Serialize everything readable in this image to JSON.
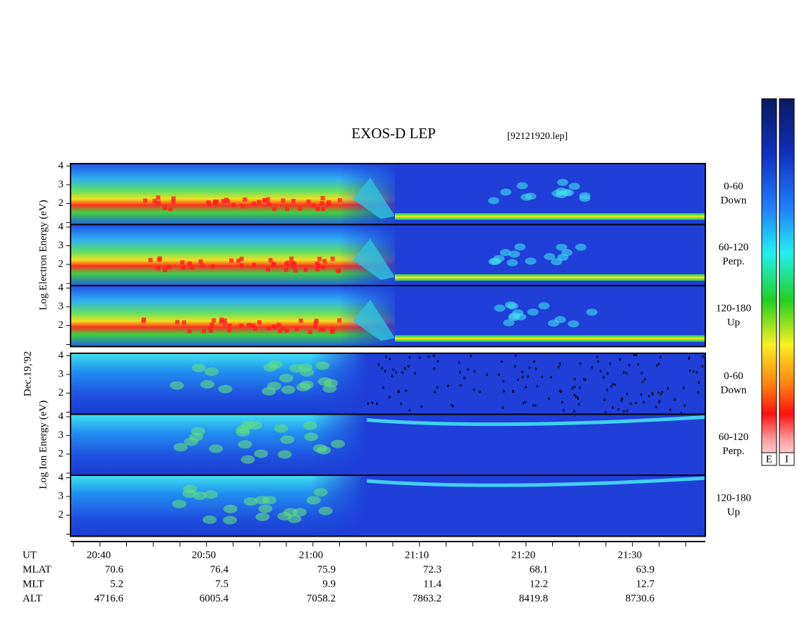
{
  "header": {
    "title": "EXOS-D LEP",
    "file": "[92121920.lep]"
  },
  "date": "Dec.19,'92",
  "groups": [
    {
      "label": "Log Electron Energy (eV)",
      "kind": "electron",
      "panels": [
        {
          "ticks": [
            "2",
            "3",
            "4"
          ],
          "right": [
            "0-60",
            "Down"
          ]
        },
        {
          "ticks": [
            "2",
            "3",
            "4"
          ],
          "right": [
            "60-120",
            "Perp."
          ]
        },
        {
          "ticks": [
            "2",
            "3",
            "4"
          ],
          "right": [
            "120-180",
            "Up"
          ]
        }
      ]
    },
    {
      "label": "Log Ion Energy (eV)",
      "kind": "ion",
      "panels": [
        {
          "ticks": [
            "2",
            "3",
            "4"
          ],
          "right": [
            "0-60",
            "Down"
          ]
        },
        {
          "ticks": [
            "2",
            "3",
            "4"
          ],
          "right": [
            "60-120",
            "Perp."
          ]
        },
        {
          "ticks": [
            "2",
            "3",
            "4"
          ],
          "right": [
            "120-180",
            "Up"
          ]
        }
      ]
    }
  ],
  "colorbars": [
    "E",
    "I"
  ],
  "table": {
    "rows": [
      {
        "label": "UT",
        "values": [
          "20:40",
          "20:50",
          "21:00",
          "21:10",
          "21:20",
          "21:30"
        ]
      },
      {
        "label": "MLAT",
        "values": [
          "70.6",
          "76.4",
          "75.9",
          "72.3",
          "68.1",
          "63.9"
        ]
      },
      {
        "label": "MLT",
        "values": [
          "5.2",
          "7.5",
          "9.9",
          "11.4",
          "12.2",
          "12.7"
        ]
      },
      {
        "label": "ALT",
        "values": [
          "4716.6",
          "6005.4",
          "7058.2",
          "7863.2",
          "8419.8",
          "8730.6"
        ]
      }
    ]
  }
}
